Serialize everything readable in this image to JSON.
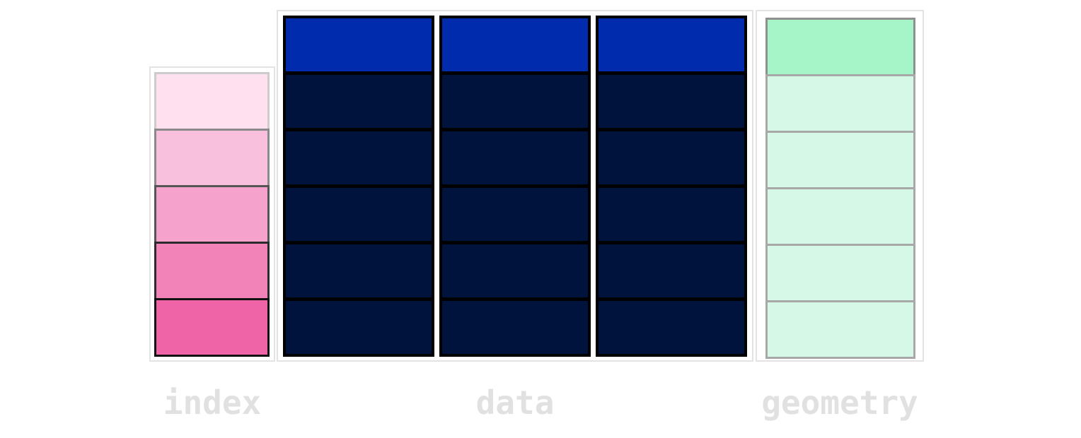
{
  "labels": {
    "index": "index",
    "data": "data",
    "geometry": "geometry"
  },
  "colors": {
    "index_cells": [
      "#ffe0ee",
      "#f8c0dc",
      "#f5a3cc",
      "#f283b8",
      "#ef64a6"
    ],
    "index_borders": [
      "#cccccc",
      "#8a8a8a",
      "#555555",
      "#2b2b2b",
      "#111111"
    ],
    "data_header": "#002bad",
    "data_body": "#00133d",
    "data_border": "#000000",
    "geometry_header": "#a6f5c8",
    "geometry_body": "#d6f8e6",
    "geometry_header_border": "#8f8f8f",
    "geometry_body_border": "#a8a8a8",
    "frame_border": "#e3e3e3",
    "label_text": "#e1e1e1"
  },
  "structure": {
    "index_rows": 5,
    "data_columns": 3,
    "data_rows": 6,
    "geometry_rows": 6
  }
}
